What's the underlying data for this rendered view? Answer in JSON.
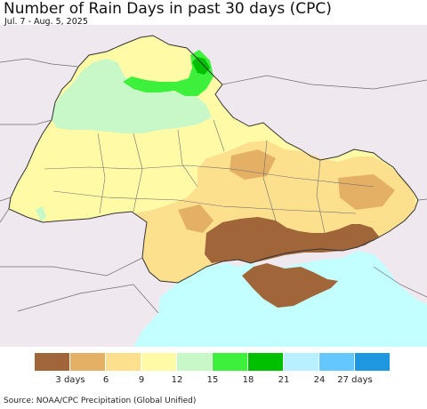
{
  "header": {
    "title": "Number of Rain Days in past 30 days (CPC)",
    "date_range": "Jul. 7 - Aug. 5, 2025"
  },
  "legend": {
    "colors": [
      "#a0663a",
      "#e3b066",
      "#fde08e",
      "#fffaa6",
      "#c8f8c8",
      "#3cf03c",
      "#00c000",
      "#b9f0ff",
      "#64c8ff",
      "#1e96e0"
    ],
    "labels": [
      {
        "text": "3 days",
        "boundary": 1
      },
      {
        "text": "6",
        "boundary": 2
      },
      {
        "text": "9",
        "boundary": 3
      },
      {
        "text": "12",
        "boundary": 4
      },
      {
        "text": "15",
        "boundary": 5
      },
      {
        "text": "18",
        "boundary": 6
      },
      {
        "text": "21",
        "boundary": 7
      },
      {
        "text": "24",
        "boundary": 8
      },
      {
        "text": "27 days",
        "boundary": 9
      }
    ]
  },
  "map": {
    "colors": {
      "land_outside": "#efe9ef",
      "sea": "#c4ffff",
      "border": "#6e6e6e"
    }
  },
  "footer": {
    "source": "Source: NOAA/CPC Precipitation (Global Unified)"
  }
}
